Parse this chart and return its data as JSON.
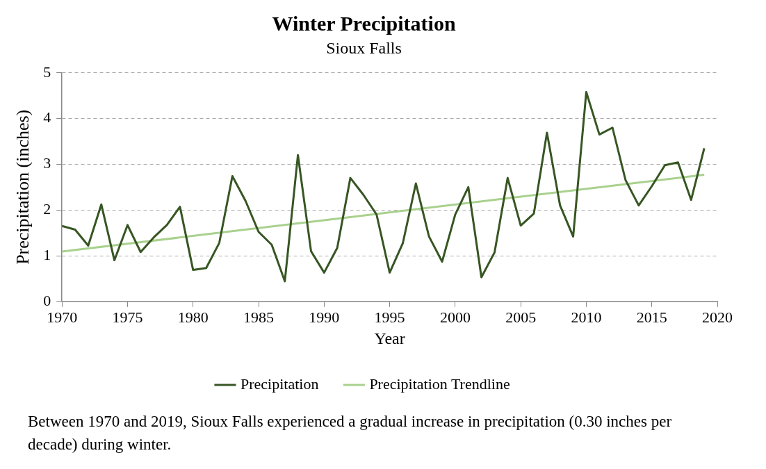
{
  "chart_data": {
    "type": "line",
    "title": "Winter Precipitation",
    "subtitle": "Sioux Falls",
    "xlabel": "Year",
    "ylabel": "Precipitation (inches)",
    "annotations": [
      "Between 1970 and 2019, Sioux Falls experienced a gradual increase in precipitation (0.30 inches per decade) during winter."
    ],
    "x": [
      1970,
      1971,
      1972,
      1973,
      1974,
      1975,
      1976,
      1977,
      1978,
      1979,
      1980,
      1981,
      1982,
      1983,
      1984,
      1985,
      1986,
      1987,
      1988,
      1989,
      1990,
      1991,
      1992,
      1993,
      1994,
      1995,
      1996,
      1997,
      1998,
      1999,
      2000,
      2001,
      2002,
      2003,
      2004,
      2005,
      2006,
      2007,
      2008,
      2009,
      2010,
      2011,
      2012,
      2013,
      2014,
      2015,
      2016,
      2017,
      2018,
      2019
    ],
    "series": [
      {
        "name": "Precipitation",
        "color": "#375623",
        "values": [
          1.65,
          1.57,
          1.22,
          2.12,
          0.9,
          1.67,
          1.08,
          1.4,
          1.67,
          2.07,
          0.69,
          0.73,
          1.28,
          2.74,
          2.2,
          1.52,
          1.24,
          0.44,
          3.2,
          1.1,
          0.63,
          1.17,
          2.7,
          2.33,
          1.9,
          0.63,
          1.27,
          2.58,
          1.42,
          0.87,
          1.9,
          2.5,
          0.53,
          1.07,
          2.7,
          1.66,
          1.92,
          3.69,
          2.1,
          1.42,
          4.58,
          3.65,
          3.8,
          2.65,
          2.1,
          2.52,
          2.98,
          3.04,
          2.22,
          3.35
        ]
      },
      {
        "name": "Precipitation Trendline",
        "color": "#a9d18e",
        "x": [
          1970,
          2019
        ],
        "values": [
          1.09,
          2.77
        ]
      }
    ],
    "xlim": [
      1970,
      2020
    ],
    "xticks": [
      1970,
      1975,
      1980,
      1985,
      1990,
      1995,
      2000,
      2005,
      2010,
      2015,
      2020
    ],
    "ylim": [
      0,
      5
    ],
    "yticks": [
      0,
      1,
      2,
      3,
      4,
      5
    ],
    "grid": "y",
    "legend": "bottom",
    "marker": "none",
    "line_style": "solid"
  }
}
